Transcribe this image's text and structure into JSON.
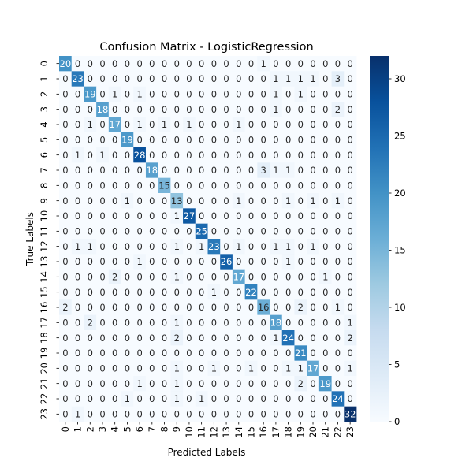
{
  "chart_data": {
    "type": "heatmap",
    "title": "Confusion Matrix - LogisticRegression",
    "xlabel": "Predicted Labels",
    "ylabel": "True Labels",
    "x_categories": [
      "0",
      "1",
      "2",
      "3",
      "4",
      "5",
      "6",
      "7",
      "8",
      "9",
      "10",
      "11",
      "12",
      "13",
      "14",
      "15",
      "16",
      "17",
      "18",
      "19",
      "20",
      "21",
      "22",
      "23"
    ],
    "y_categories": [
      "0",
      "1",
      "2",
      "3",
      "4",
      "5",
      "6",
      "7",
      "8",
      "9",
      "10",
      "11",
      "12",
      "13",
      "14",
      "15",
      "16",
      "17",
      "18",
      "19",
      "20",
      "21",
      "22",
      "23"
    ],
    "values": [
      [
        20,
        0,
        0,
        0,
        0,
        0,
        0,
        0,
        0,
        0,
        0,
        0,
        0,
        0,
        0,
        0,
        1,
        0,
        0,
        0,
        0,
        0,
        0,
        0
      ],
      [
        0,
        23,
        0,
        0,
        0,
        0,
        0,
        0,
        0,
        0,
        0,
        0,
        0,
        0,
        0,
        0,
        0,
        1,
        1,
        1,
        1,
        0,
        3,
        0
      ],
      [
        0,
        0,
        19,
        0,
        1,
        0,
        1,
        0,
        0,
        0,
        0,
        0,
        0,
        0,
        0,
        0,
        0,
        1,
        0,
        1,
        0,
        0,
        0,
        0
      ],
      [
        0,
        0,
        0,
        18,
        0,
        0,
        0,
        0,
        0,
        0,
        0,
        0,
        0,
        0,
        0,
        0,
        0,
        1,
        0,
        0,
        0,
        0,
        2,
        0
      ],
      [
        0,
        0,
        1,
        0,
        17,
        0,
        1,
        0,
        1,
        0,
        1,
        0,
        0,
        0,
        1,
        0,
        0,
        0,
        0,
        0,
        0,
        0,
        0,
        0
      ],
      [
        0,
        0,
        0,
        0,
        0,
        19,
        0,
        0,
        0,
        0,
        0,
        0,
        0,
        0,
        0,
        0,
        0,
        0,
        0,
        0,
        0,
        0,
        0,
        0
      ],
      [
        0,
        1,
        0,
        1,
        0,
        0,
        28,
        0,
        0,
        0,
        0,
        0,
        0,
        0,
        0,
        0,
        0,
        0,
        0,
        0,
        0,
        0,
        0,
        0
      ],
      [
        0,
        0,
        0,
        0,
        0,
        0,
        0,
        18,
        0,
        0,
        0,
        0,
        0,
        0,
        0,
        0,
        3,
        1,
        1,
        0,
        0,
        0,
        0,
        0
      ],
      [
        0,
        0,
        0,
        0,
        0,
        0,
        0,
        0,
        15,
        0,
        0,
        0,
        0,
        0,
        0,
        0,
        0,
        0,
        0,
        0,
        0,
        0,
        0,
        0
      ],
      [
        0,
        0,
        0,
        0,
        0,
        1,
        0,
        0,
        0,
        13,
        0,
        0,
        0,
        0,
        1,
        0,
        0,
        0,
        1,
        0,
        1,
        0,
        1,
        0
      ],
      [
        0,
        0,
        0,
        0,
        0,
        0,
        0,
        0,
        0,
        1,
        27,
        0,
        0,
        0,
        0,
        0,
        0,
        0,
        0,
        0,
        0,
        0,
        0,
        0
      ],
      [
        0,
        0,
        0,
        0,
        0,
        0,
        0,
        0,
        0,
        0,
        0,
        25,
        0,
        0,
        0,
        0,
        0,
        0,
        0,
        0,
        0,
        0,
        0,
        0
      ],
      [
        0,
        1,
        1,
        0,
        0,
        0,
        0,
        0,
        0,
        1,
        0,
        1,
        23,
        0,
        1,
        0,
        0,
        1,
        1,
        0,
        1,
        0,
        0,
        0
      ],
      [
        0,
        0,
        0,
        0,
        0,
        0,
        1,
        0,
        0,
        0,
        0,
        0,
        0,
        26,
        0,
        0,
        0,
        0,
        1,
        0,
        0,
        0,
        0,
        0
      ],
      [
        0,
        0,
        0,
        0,
        2,
        0,
        0,
        0,
        0,
        1,
        0,
        0,
        0,
        0,
        17,
        0,
        0,
        0,
        0,
        0,
        0,
        1,
        0,
        0
      ],
      [
        0,
        0,
        0,
        0,
        0,
        0,
        0,
        0,
        0,
        0,
        0,
        0,
        1,
        0,
        0,
        22,
        0,
        0,
        0,
        0,
        0,
        0,
        0,
        0
      ],
      [
        2,
        0,
        0,
        0,
        0,
        0,
        0,
        0,
        0,
        0,
        0,
        0,
        0,
        0,
        0,
        0,
        16,
        0,
        0,
        2,
        0,
        0,
        1,
        0
      ],
      [
        0,
        0,
        2,
        0,
        0,
        0,
        0,
        0,
        0,
        1,
        0,
        0,
        0,
        0,
        0,
        0,
        0,
        18,
        0,
        0,
        0,
        0,
        0,
        1
      ],
      [
        0,
        0,
        0,
        0,
        0,
        0,
        0,
        0,
        0,
        2,
        0,
        0,
        0,
        0,
        0,
        0,
        0,
        1,
        24,
        0,
        0,
        0,
        0,
        2
      ],
      [
        0,
        0,
        0,
        0,
        0,
        0,
        0,
        0,
        0,
        0,
        0,
        0,
        0,
        0,
        0,
        0,
        0,
        0,
        0,
        21,
        0,
        0,
        0,
        0
      ],
      [
        0,
        0,
        0,
        0,
        0,
        0,
        0,
        0,
        0,
        1,
        0,
        0,
        1,
        0,
        0,
        1,
        0,
        0,
        1,
        1,
        17,
        0,
        0,
        1
      ],
      [
        0,
        0,
        0,
        0,
        0,
        0,
        1,
        0,
        0,
        1,
        0,
        0,
        0,
        0,
        0,
        0,
        0,
        0,
        0,
        2,
        0,
        19,
        0,
        0
      ],
      [
        0,
        0,
        0,
        0,
        0,
        1,
        0,
        0,
        0,
        1,
        0,
        1,
        0,
        0,
        0,
        0,
        0,
        0,
        0,
        0,
        0,
        0,
        24,
        0
      ],
      [
        0,
        1,
        0,
        0,
        0,
        0,
        0,
        0,
        0,
        0,
        0,
        0,
        0,
        0,
        0,
        0,
        0,
        0,
        0,
        0,
        0,
        0,
        0,
        32
      ]
    ],
    "colorbar": {
      "min": 0,
      "max": 32,
      "ticks": [
        0,
        5,
        10,
        15,
        20,
        25,
        30
      ]
    },
    "colormap": "Blues",
    "legend": "colorbar-right",
    "grid": false,
    "colors": {
      "low": "#f7fbff",
      "high": "#08306b",
      "text_dark": "#262626",
      "text_light": "#ffffff"
    }
  }
}
